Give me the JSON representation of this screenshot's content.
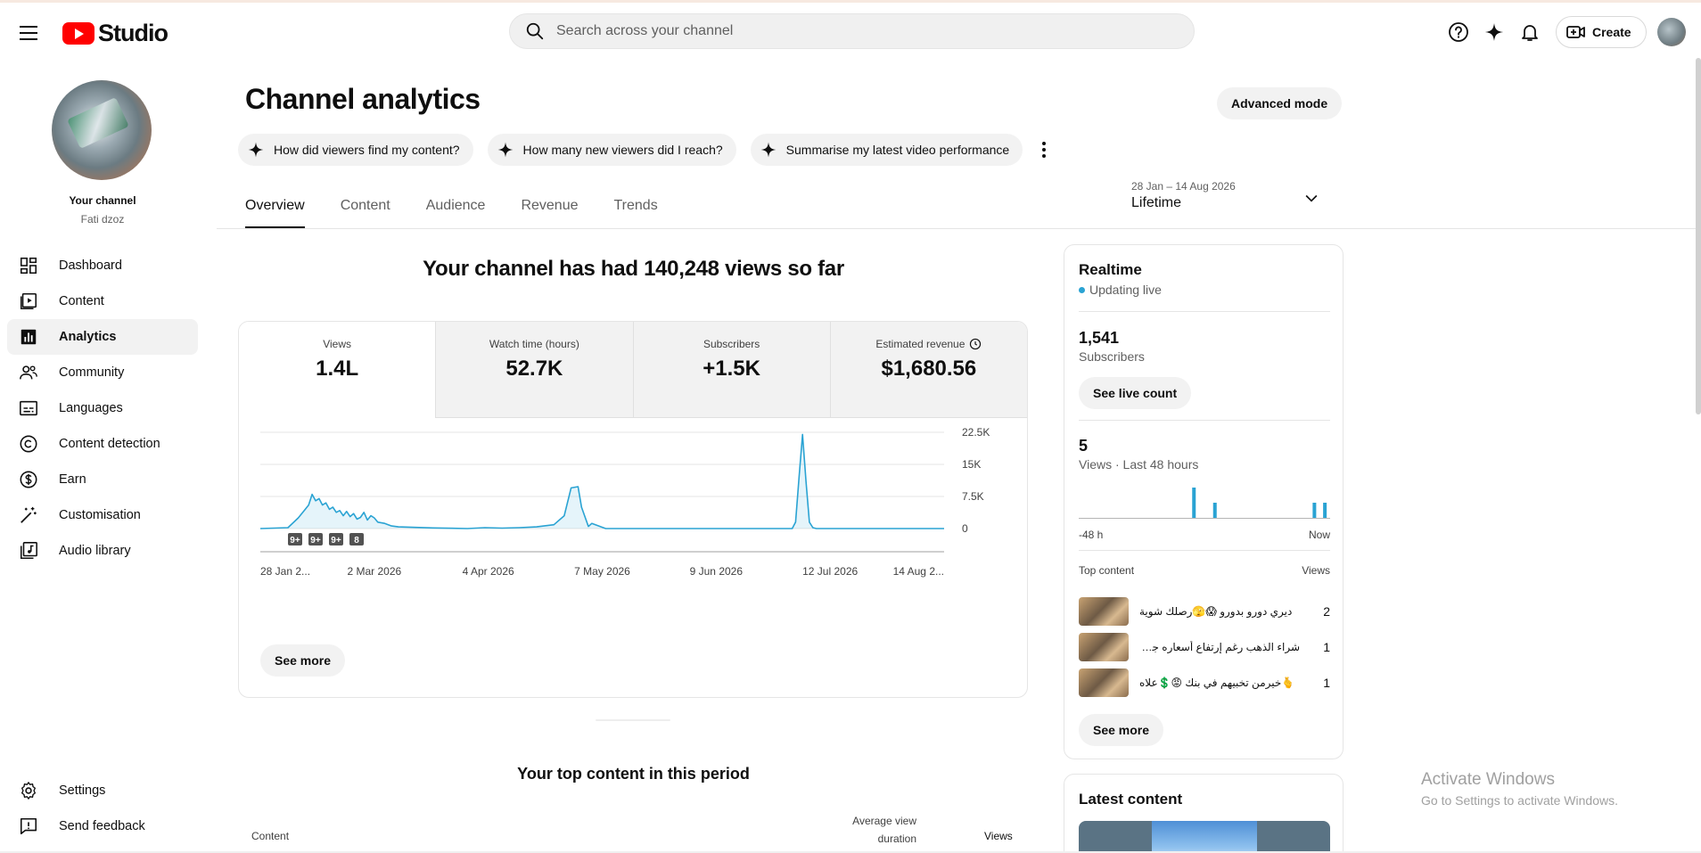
{
  "header": {
    "logo_text": "Studio",
    "search_placeholder": "Search across your channel",
    "create_label": "Create"
  },
  "channel": {
    "label": "Your channel",
    "name": "Fati dzoz"
  },
  "sidebar": {
    "items": [
      {
        "label": "Dashboard",
        "icon": "dashboard-icon"
      },
      {
        "label": "Content",
        "icon": "content-icon"
      },
      {
        "label": "Analytics",
        "icon": "analytics-icon",
        "active": true
      },
      {
        "label": "Community",
        "icon": "community-icon"
      },
      {
        "label": "Languages",
        "icon": "languages-icon"
      },
      {
        "label": "Content detection",
        "icon": "copyright-icon"
      },
      {
        "label": "Earn",
        "icon": "dollar-icon"
      },
      {
        "label": "Customisation",
        "icon": "magic-wand-icon"
      },
      {
        "label": "Audio library",
        "icon": "audio-library-icon"
      }
    ],
    "bottom": [
      {
        "label": "Settings",
        "icon": "gear-icon"
      },
      {
        "label": "Send feedback",
        "icon": "feedback-icon"
      }
    ]
  },
  "page": {
    "title": "Channel analytics",
    "advanced_mode": "Advanced mode",
    "chips": [
      "How did viewers find my content?",
      "How many new viewers did I reach?",
      "Summarise my latest video performance"
    ],
    "tabs": [
      "Overview",
      "Content",
      "Audience",
      "Revenue",
      "Trends"
    ],
    "active_tab": "Overview",
    "date_range": "28 Jan – 14 Aug 2026",
    "period": "Lifetime",
    "headline": "Your channel has had 140,248 views so far"
  },
  "metrics": [
    {
      "label": "Views",
      "value": "1.4L"
    },
    {
      "label": "Watch time (hours)",
      "value": "52.7K"
    },
    {
      "label": "Subscribers",
      "value": "+1.5K"
    },
    {
      "label": "Estimated revenue",
      "value": "$1,680.56",
      "has_info_icon": true
    }
  ],
  "chart_data": {
    "type": "area",
    "x_tick_labels": [
      "28 Jan 2...",
      "2 Mar 2026",
      "4 Apr 2026",
      "7 May 2026",
      "9 Jun 2026",
      "12 Jul 2026",
      "14 Aug 2..."
    ],
    "y_tick_labels": [
      "22.5K",
      "15K",
      "7.5K",
      "0"
    ],
    "y_ticks": [
      22500,
      15000,
      7500,
      0
    ],
    "ylim": [
      0,
      22500
    ],
    "x_range_days": [
      0,
      198
    ],
    "series": [
      {
        "x_day": [
          0,
          8,
          11,
          13,
          14,
          15,
          16,
          17,
          18,
          19,
          20,
          21,
          22,
          23,
          24,
          25,
          26,
          27,
          28,
          29,
          30,
          31,
          32,
          33,
          34,
          36,
          38,
          40,
          44,
          50,
          60,
          65,
          70,
          75,
          80,
          85,
          88,
          90,
          92,
          93,
          95,
          96,
          100,
          120,
          140,
          154,
          155,
          156,
          157,
          158,
          159,
          160,
          161,
          165,
          180,
          198
        ],
        "y": [
          0,
          200,
          2500,
          4500,
          5500,
          8000,
          6500,
          7000,
          5500,
          6000,
          4500,
          5000,
          3800,
          4200,
          3000,
          4000,
          2800,
          3500,
          2200,
          2600,
          3800,
          2000,
          3000,
          2500,
          1500,
          1200,
          600,
          400,
          300,
          150,
          0,
          200,
          100,
          200,
          400,
          900,
          3000,
          9500,
          9800,
          5000,
          500,
          1200,
          0,
          0,
          0,
          0,
          1500,
          12000,
          22000,
          11000,
          1500,
          200,
          0,
          0,
          0,
          0
        ]
      }
    ],
    "markers": [
      "9+",
      "9+",
      "9+",
      "8"
    ],
    "see_more": "See more"
  },
  "realtime": {
    "title": "Realtime",
    "status": "Updating live",
    "subscribers_value": "1,541",
    "subscribers_label": "Subscribers",
    "see_live_count": "See live count",
    "views_value": "5",
    "views_label": "Views · Last 48 hours",
    "bar_chart": {
      "type": "bar",
      "hours_ago": [
        -26,
        -22,
        -3,
        -1
      ],
      "values": [
        2,
        1,
        1,
        1
      ],
      "axis_start": "-48 h",
      "axis_end": "Now"
    },
    "top_content_label": "Top content",
    "views_col": "Views",
    "top_content": [
      {
        "title": "ديري دورو بدورو 😱🫣رصلك شوية",
        "views": "2"
      },
      {
        "title": "شراء الذهب رغم إرتفاع أسعاره جتوتية",
        "views": "1"
      },
      {
        "title": "🫰خيرمن تخبيهم في بنك 😡💲علاه",
        "views": "1"
      }
    ],
    "see_more": "See more"
  },
  "latest": {
    "title": "Latest content"
  },
  "top_content": {
    "title": "Your top content in this period",
    "col_content": "Content",
    "col_avd": "Average view duration",
    "col_views": "Views"
  },
  "watermark": {
    "line1": "Activate Windows",
    "line2": "Go to Settings to activate Windows."
  }
}
